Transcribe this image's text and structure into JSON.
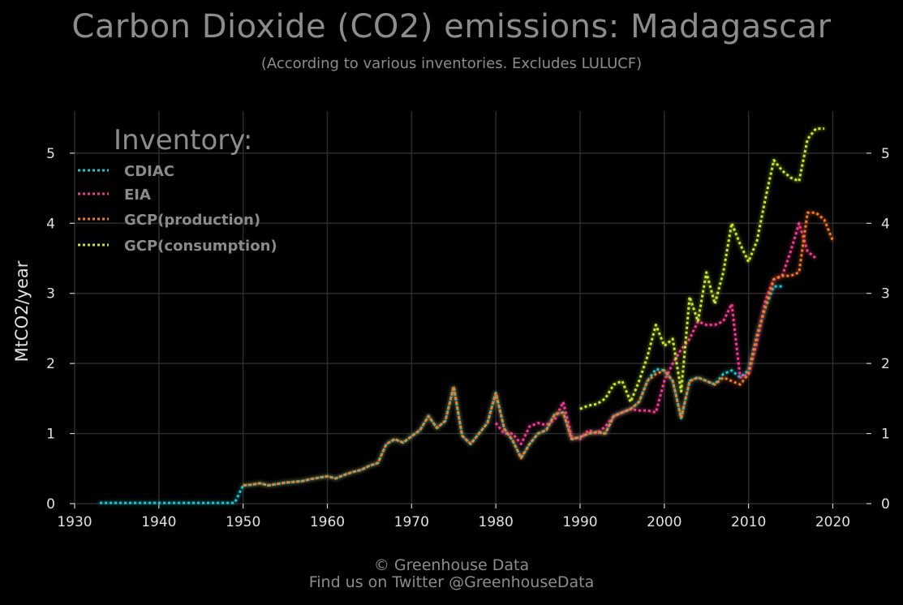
{
  "title": "Carbon Dioxide (CO2) emissions: Madagascar",
  "subtitle": "(According to various inventories. Excludes LULUCF)",
  "footer": {
    "line1": "© Greenhouse Data",
    "line2": "Find us on Twitter @GreenhouseData"
  },
  "colors": {
    "background": "#000000",
    "grid": "#2b2b2b",
    "text": "#8c8c8c"
  },
  "chart_data": {
    "type": "line",
    "title": "Carbon Dioxide (CO2) emissions: Madagascar",
    "subtitle": "(According to various inventories. Excludes LULUCF)",
    "xlabel": "",
    "ylabel": "MtCO2/year",
    "xlim": [
      1930,
      2024
    ],
    "ylim": [
      0,
      5.6
    ],
    "xticks": [
      1930,
      1940,
      1950,
      1960,
      1970,
      1980,
      1990,
      2000,
      2010,
      2020
    ],
    "yticks": [
      0,
      1,
      2,
      3,
      4,
      5
    ],
    "grid": true,
    "legend_title": "Inventory:",
    "legend_position": "top-left",
    "series": [
      {
        "name": "CDIAC",
        "color": "#17c8d2",
        "x": [
          1933,
          1934,
          1935,
          1936,
          1937,
          1938,
          1939,
          1940,
          1941,
          1942,
          1943,
          1944,
          1945,
          1946,
          1947,
          1948,
          1949,
          1950,
          1951,
          1952,
          1953,
          1954,
          1955,
          1956,
          1957,
          1958,
          1959,
          1960,
          1961,
          1962,
          1963,
          1964,
          1965,
          1966,
          1967,
          1968,
          1969,
          1970,
          1971,
          1972,
          1973,
          1974,
          1975,
          1976,
          1977,
          1978,
          1979,
          1980,
          1981,
          1982,
          1983,
          1984,
          1985,
          1986,
          1987,
          1988,
          1989,
          1990,
          1991,
          1992,
          1993,
          1994,
          1995,
          1996,
          1997,
          1998,
          1999,
          2000,
          2001,
          2002,
          2003,
          2004,
          2005,
          2006,
          2007,
          2008,
          2009,
          2010,
          2011,
          2012,
          2013,
          2014
        ],
        "values": [
          0.01,
          0.01,
          0.01,
          0.01,
          0.01,
          0.01,
          0.01,
          0.01,
          0.01,
          0.01,
          0.01,
          0.01,
          0.01,
          0.01,
          0.01,
          0.01,
          0.01,
          0.26,
          0.27,
          0.29,
          0.26,
          0.28,
          0.3,
          0.31,
          0.32,
          0.35,
          0.37,
          0.39,
          0.36,
          0.41,
          0.45,
          0.48,
          0.54,
          0.58,
          0.85,
          0.92,
          0.87,
          0.96,
          1.05,
          1.25,
          1.08,
          1.18,
          1.67,
          0.97,
          0.85,
          1.0,
          1.15,
          1.58,
          1.07,
          0.9,
          0.65,
          0.85,
          1.0,
          1.05,
          1.28,
          1.3,
          0.92,
          0.95,
          1.0,
          1.02,
          1.0,
          1.25,
          1.3,
          1.35,
          1.45,
          1.75,
          1.92,
          1.9,
          1.75,
          1.22,
          1.75,
          1.8,
          1.75,
          1.7,
          1.85,
          1.9,
          1.8,
          1.9,
          2.4,
          2.8,
          3.1,
          3.1
        ]
      },
      {
        "name": "EIA",
        "color": "#ec3e8f",
        "x": [
          1980,
          1981,
          1982,
          1983,
          1984,
          1985,
          1986,
          1987,
          1988,
          1989,
          1990,
          1991,
          1992,
          1993,
          1994,
          1995,
          1996,
          1997,
          1998,
          1999,
          2000,
          2001,
          2002,
          2003,
          2004,
          2005,
          2006,
          2007,
          2008,
          2009,
          2010,
          2011,
          2012,
          2013,
          2014,
          2015,
          2016,
          2017,
          2018
        ],
        "values": [
          1.15,
          1.0,
          1.0,
          0.85,
          1.1,
          1.15,
          1.12,
          1.2,
          1.45,
          0.95,
          0.92,
          1.05,
          1.0,
          1.1,
          1.25,
          1.3,
          1.35,
          1.33,
          1.33,
          1.3,
          1.75,
          2.0,
          2.2,
          2.35,
          2.6,
          2.55,
          2.55,
          2.6,
          2.85,
          1.8,
          1.85,
          2.3,
          2.9,
          3.2,
          3.25,
          3.6,
          4.0,
          3.6,
          3.5
        ]
      },
      {
        "name": "GCP(production)",
        "color": "#f47a22",
        "x": [
          1950,
          1951,
          1952,
          1953,
          1954,
          1955,
          1956,
          1957,
          1958,
          1959,
          1960,
          1961,
          1962,
          1963,
          1964,
          1965,
          1966,
          1967,
          1968,
          1969,
          1970,
          1971,
          1972,
          1973,
          1974,
          1975,
          1976,
          1977,
          1978,
          1979,
          1980,
          1981,
          1982,
          1983,
          1984,
          1985,
          1986,
          1987,
          1988,
          1989,
          1990,
          1991,
          1992,
          1993,
          1994,
          1995,
          1996,
          1997,
          1998,
          1999,
          2000,
          2001,
          2002,
          2003,
          2004,
          2005,
          2006,
          2007,
          2008,
          2009,
          2010,
          2011,
          2012,
          2013,
          2014,
          2015,
          2016,
          2017,
          2018,
          2019,
          2020
        ],
        "values": [
          0.26,
          0.27,
          0.29,
          0.26,
          0.28,
          0.3,
          0.31,
          0.32,
          0.35,
          0.37,
          0.39,
          0.36,
          0.41,
          0.45,
          0.48,
          0.54,
          0.58,
          0.85,
          0.92,
          0.87,
          0.96,
          1.05,
          1.25,
          1.08,
          1.18,
          1.67,
          0.97,
          0.85,
          1.0,
          1.15,
          1.58,
          1.07,
          0.9,
          0.65,
          0.85,
          1.0,
          1.05,
          1.28,
          1.3,
          0.92,
          0.95,
          1.0,
          1.02,
          1.0,
          1.25,
          1.3,
          1.35,
          1.45,
          1.75,
          1.85,
          1.9,
          1.75,
          1.22,
          1.75,
          1.8,
          1.75,
          1.7,
          1.8,
          1.75,
          1.7,
          1.85,
          2.4,
          2.8,
          3.2,
          3.25,
          3.25,
          3.3,
          4.15,
          4.15,
          4.05,
          3.75
        ]
      },
      {
        "name": "GCP(consumption)",
        "color": "#c8e630",
        "x": [
          1990,
          1991,
          1992,
          1993,
          1994,
          1995,
          1996,
          1997,
          1998,
          1999,
          2000,
          2001,
          2002,
          2003,
          2004,
          2005,
          2006,
          2007,
          2008,
          2009,
          2010,
          2011,
          2012,
          2013,
          2014,
          2015,
          2016,
          2017,
          2018,
          2019
        ],
        "values": [
          1.35,
          1.4,
          1.42,
          1.5,
          1.7,
          1.75,
          1.45,
          1.75,
          2.1,
          2.55,
          2.25,
          2.35,
          1.6,
          2.95,
          2.6,
          3.3,
          2.85,
          3.3,
          4.0,
          3.7,
          3.45,
          3.75,
          4.35,
          4.9,
          4.75,
          4.65,
          4.6,
          5.2,
          5.35,
          5.35
        ]
      }
    ]
  }
}
